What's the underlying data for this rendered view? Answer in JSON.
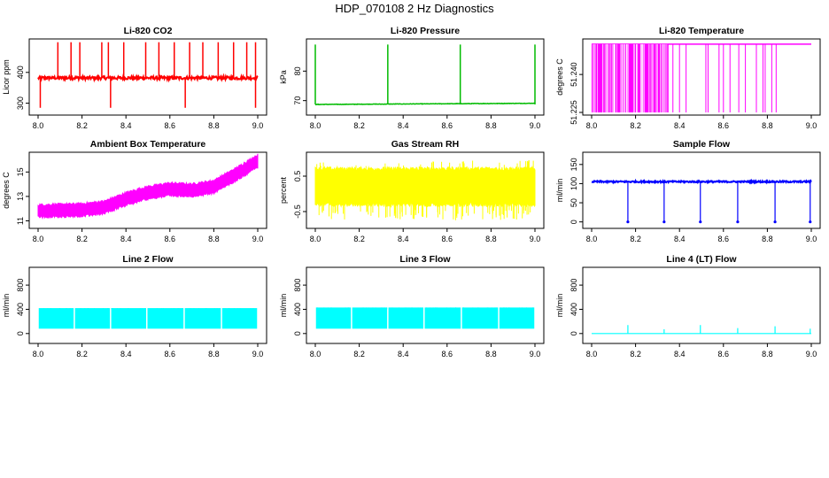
{
  "title": "HDP_070108  2 Hz Diagnostics",
  "colors": {
    "co2": "#ff0000",
    "pressure": "#00bb00",
    "temperature": "#ff00ff",
    "ambient": "#ff00ff",
    "rh": "#ffff00",
    "sample": "#0000ff",
    "line": "#00ffff"
  },
  "chart_data": [
    {
      "type": "line",
      "title": "Li-820 CO2",
      "ylabel": "Licor ppm",
      "xlim": [
        8.0,
        9.0
      ],
      "ylim": [
        270,
        500
      ],
      "xticks": [
        "8.0",
        "8.2",
        "8.4",
        "8.6",
        "8.8",
        "9.0"
      ],
      "yticks": [
        300,
        400
      ],
      "ytick_labels": [
        "300",
        "400"
      ],
      "color": "#ff0000",
      "series": [
        {
          "name": "co2",
          "baseline": 382,
          "noise": 5,
          "spikes_up": [
            8.09,
            8.15,
            8.19,
            8.29,
            8.32,
            8.39,
            8.49,
            8.55,
            8.62,
            8.69,
            8.75,
            8.82,
            8.89,
            8.95,
            8.99
          ],
          "spike_up_to": 498,
          "spikes_down": [
            8.01,
            8.33,
            8.67,
            8.99
          ],
          "spike_down_to": 285
        }
      ]
    },
    {
      "type": "line",
      "title": "Li-820 Pressure",
      "ylabel": "kPa",
      "xlim": [
        8.0,
        9.0
      ],
      "ylim": [
        66,
        90
      ],
      "xticks": [
        "8.0",
        "8.2",
        "8.4",
        "8.6",
        "8.8",
        "9.0"
      ],
      "yticks": [
        70,
        80
      ],
      "ytick_labels": [
        "70",
        "80"
      ],
      "color": "#00bb00",
      "series": [
        {
          "name": "pressure",
          "start": 68.7,
          "end": 69.1,
          "spikes": [
            8.0,
            8.33,
            8.66,
            9.0
          ],
          "spike_to": 89
        }
      ]
    },
    {
      "type": "line",
      "title": "Li-820 Temperature",
      "ylabel": "degrees C",
      "xlim": [
        8.0,
        9.0
      ],
      "ylim": [
        51.225,
        51.253
      ],
      "xticks": [
        "8.0",
        "8.2",
        "8.4",
        "8.6",
        "8.8",
        "9.0"
      ],
      "yticks": [
        51.225,
        51.24
      ],
      "ytick_labels": [
        "51.225",
        "51.240"
      ],
      "color": "#ff00ff",
      "series": [
        {
          "name": "temperature",
          "high": 51.252,
          "low": 51.225,
          "dense_end": 8.35,
          "toggles": [
            8.37,
            8.4,
            8.43,
            8.52,
            8.53,
            8.58,
            8.6,
            8.63,
            8.67,
            8.7,
            8.75,
            8.78,
            8.79,
            8.82,
            8.84
          ]
        }
      ]
    },
    {
      "type": "line",
      "title": "Ambient Box Temperature",
      "ylabel": "degrees C",
      "xlim": [
        8.0,
        9.0
      ],
      "ylim": [
        10.6,
        16.4
      ],
      "xticks": [
        "8.0",
        "8.2",
        "8.4",
        "8.6",
        "8.8",
        "9.0"
      ],
      "yticks": [
        11,
        13,
        15
      ],
      "ytick_labels": [
        "11",
        "13",
        "15"
      ],
      "color": "#ff00ff",
      "series": [
        {
          "name": "ambient",
          "x": [
            8.0,
            8.2,
            8.3,
            8.4,
            8.5,
            8.6,
            8.7,
            8.8,
            8.9,
            9.0
          ],
          "y": [
            11.8,
            11.9,
            12.1,
            12.8,
            13.3,
            13.6,
            13.5,
            13.8,
            14.8,
            15.9
          ],
          "band": 0.5
        }
      ]
    },
    {
      "type": "line",
      "title": "Gas Stream RH",
      "ylabel": "percent",
      "xlim": [
        8.0,
        9.0
      ],
      "ylim": [
        -0.9,
        1.1
      ],
      "xticks": [
        "8.0",
        "8.2",
        "8.4",
        "8.6",
        "8.8",
        "9.0"
      ],
      "yticks": [
        -0.5,
        0.5
      ],
      "ytick_labels": [
        "-0.5",
        "0.5"
      ],
      "color": "#ffff00",
      "series": [
        {
          "name": "rh",
          "center": 0.2,
          "band": 0.5,
          "spike_min": -0.75,
          "spike_max": 0.95
        }
      ]
    },
    {
      "type": "line",
      "title": "Sample Flow",
      "ylabel": "ml/min",
      "xlim": [
        8.0,
        9.0
      ],
      "ylim": [
        -10,
        175
      ],
      "xticks": [
        "8.0",
        "8.2",
        "8.4",
        "8.6",
        "8.8",
        "9.0"
      ],
      "yticks": [
        0,
        50,
        100,
        150
      ],
      "ytick_labels": [
        "0",
        "50",
        "100",
        "150"
      ],
      "color": "#0000ff",
      "series": [
        {
          "name": "sample",
          "baseline": 105,
          "noise": 2,
          "drops": [
            8.165,
            8.33,
            8.495,
            8.665,
            8.835,
            8.995
          ],
          "drop_to": 0
        }
      ]
    },
    {
      "type": "line",
      "title": "Line 2 Flow",
      "ylabel": "ml/min",
      "xlim": [
        8.0,
        9.0
      ],
      "ylim": [
        -120,
        1050
      ],
      "xticks": [
        "8.0",
        "8.2",
        "8.4",
        "8.6",
        "8.8",
        "9.0"
      ],
      "yticks": [
        0,
        400,
        800
      ],
      "ytick_labels": [
        "0",
        "400",
        "800"
      ],
      "color": "#00ffff",
      "series": [
        {
          "name": "line2",
          "low": 80,
          "high": 420,
          "gaps": [
            8.165,
            8.33,
            8.495,
            8.665,
            8.835
          ]
        }
      ]
    },
    {
      "type": "line",
      "title": "Line 3 Flow",
      "ylabel": "ml/min",
      "xlim": [
        8.0,
        9.0
      ],
      "ylim": [
        -120,
        1050
      ],
      "xticks": [
        "8.0",
        "8.2",
        "8.4",
        "8.6",
        "8.8",
        "9.0"
      ],
      "yticks": [
        0,
        400,
        800
      ],
      "ytick_labels": [
        "0",
        "400",
        "800"
      ],
      "color": "#00ffff",
      "series": [
        {
          "name": "line3",
          "low": 80,
          "high": 430,
          "gaps": [
            8.165,
            8.33,
            8.495,
            8.665,
            8.835
          ]
        }
      ]
    },
    {
      "type": "line",
      "title": "Line 4 (LT) Flow",
      "ylabel": "ml/min",
      "xlim": [
        8.0,
        9.0
      ],
      "ylim": [
        -120,
        1050
      ],
      "xticks": [
        "8.0",
        "8.2",
        "8.4",
        "8.6",
        "8.8",
        "9.0"
      ],
      "yticks": [
        0,
        400,
        800
      ],
      "ytick_labels": [
        "0",
        "400",
        "800"
      ],
      "color": "#00ffff",
      "series": [
        {
          "name": "line4",
          "baseline": 0,
          "spikes": [
            8.165,
            8.33,
            8.495,
            8.665,
            8.835,
            8.995
          ],
          "spike_heights": [
            140,
            70,
            140,
            90,
            120,
            80
          ]
        }
      ]
    }
  ]
}
